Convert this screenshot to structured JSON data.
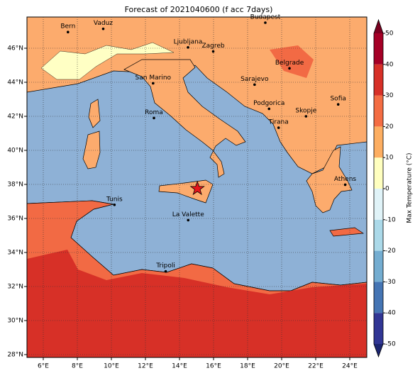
{
  "title": "Forecast of 2021040600 (f acc 7days)",
  "map": {
    "lon_ticks": [
      {
        "value": 6,
        "label": "6°E"
      },
      {
        "value": 8,
        "label": "8°E"
      },
      {
        "value": 10,
        "label": "10°E"
      },
      {
        "value": 12,
        "label": "12°E"
      },
      {
        "value": 14,
        "label": "14°E"
      },
      {
        "value": 16,
        "label": "16°E"
      },
      {
        "value": 18,
        "label": "18°E"
      },
      {
        "value": 20,
        "label": "20°E"
      },
      {
        "value": 22,
        "label": "22°E"
      },
      {
        "value": 24,
        "label": "24°E"
      }
    ],
    "lat_ticks": [
      {
        "value": 28,
        "label": "28°N"
      },
      {
        "value": 30,
        "label": "30°N"
      },
      {
        "value": 32,
        "label": "32°N"
      },
      {
        "value": 34,
        "label": "34°N"
      },
      {
        "value": 36,
        "label": "36°N"
      },
      {
        "value": 38,
        "label": "38°N"
      },
      {
        "value": 40,
        "label": "40°N"
      },
      {
        "value": 42,
        "label": "42°N"
      },
      {
        "value": 44,
        "label": "44°N"
      },
      {
        "value": 46,
        "label": "46°N"
      }
    ],
    "cities": [
      {
        "name": "Bern",
        "lon": 7.45,
        "lat": 46.95
      },
      {
        "name": "Vaduz",
        "lon": 9.52,
        "lat": 47.14
      },
      {
        "name": "Budapest",
        "lon": 19.04,
        "lat": 47.5
      },
      {
        "name": "Ljubljana",
        "lon": 14.5,
        "lat": 46.05
      },
      {
        "name": "Zagreb",
        "lon": 15.98,
        "lat": 45.81
      },
      {
        "name": "Belgrade",
        "lon": 20.46,
        "lat": 44.82
      },
      {
        "name": "Sarajevo",
        "lon": 18.41,
        "lat": 43.86
      },
      {
        "name": "San Marino",
        "lon": 12.45,
        "lat": 43.94
      },
      {
        "name": "Sofia",
        "lon": 23.32,
        "lat": 42.7
      },
      {
        "name": "Podgorica",
        "lon": 19.26,
        "lat": 42.44
      },
      {
        "name": "Skopje",
        "lon": 21.43,
        "lat": 42.0
      },
      {
        "name": "Roma",
        "lon": 12.5,
        "lat": 41.9
      },
      {
        "name": "Tirana",
        "lon": 19.82,
        "lat": 41.33
      },
      {
        "name": "Athens",
        "lon": 23.73,
        "lat": 37.98
      },
      {
        "name": "Tunis",
        "lon": 10.18,
        "lat": 36.8
      },
      {
        "name": "La Valette",
        "lon": 14.51,
        "lat": 35.9
      },
      {
        "name": "Tripoli",
        "lon": 13.19,
        "lat": 32.89
      }
    ],
    "marker": {
      "lon": 15.05,
      "lat": 37.75
    }
  },
  "colorbar": {
    "label": "Max Temperature (°C)",
    "ticks": [
      -50,
      -40,
      -30,
      -20,
      -10,
      0,
      10,
      20,
      30,
      40,
      50
    ],
    "colors": [
      "#313695",
      "#4575b4",
      "#74add1",
      "#abd9e9",
      "#e0f3f8",
      "#ffffbf",
      "#fdae61",
      "#f46d43",
      "#d73027",
      "#a50026"
    ],
    "under_color": "#1c2570",
    "over_color": "#7a0020"
  }
}
